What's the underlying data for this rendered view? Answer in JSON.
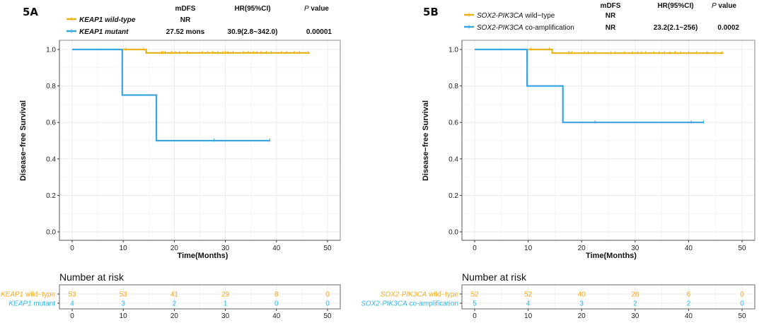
{
  "colors": {
    "wild": "#E8B41A",
    "mutant": "#3AA6E0",
    "risk_wild": "#F4A81E",
    "risk_mut": "#2FB6EE"
  },
  "chart_data": [
    {
      "type": "line",
      "panel": "5A",
      "title": "",
      "xlabel": "Time(Months)",
      "ylabel": "Disease−free Survival",
      "xlim": [
        0,
        50
      ],
      "ylim": [
        0,
        1
      ],
      "xticks": [
        0,
        10,
        20,
        30,
        40,
        50
      ],
      "yticks": [
        "0.0",
        "0.2",
        "0.4",
        "0.6",
        "0.8",
        "1.0"
      ],
      "grid": true,
      "legend_table": {
        "headers": [
          "mDFS",
          "HR(95%CI)",
          "P value"
        ],
        "rows": [
          {
            "gene": "KEAP1",
            "label": " wild-type",
            "mdfs": "NR",
            "hr": "",
            "p": ""
          },
          {
            "gene": "KEAP1",
            "label": " mutant",
            "mdfs": "27.52 mons",
            "hr": "30.9(2.8~342.0)",
            "p": "0.00001"
          }
        ]
      },
      "series": [
        {
          "name": "KEAP1 wild-type",
          "color_key": "wild",
          "steps": [
            [
              0,
              1.0
            ],
            [
              14.5,
              1.0
            ],
            [
              14.5,
              0.981
            ],
            [
              46.5,
              0.981
            ]
          ],
          "start": 10,
          "censors": [
            [
              10.5,
              1.0
            ],
            [
              14.0,
              1.0
            ],
            [
              17.5,
              0.981
            ],
            [
              17.8,
              0.981
            ],
            [
              18.2,
              0.981
            ],
            [
              19.5,
              0.981
            ],
            [
              20.2,
              0.981
            ],
            [
              21,
              0.981
            ],
            [
              22.5,
              0.981
            ],
            [
              25.5,
              0.981
            ],
            [
              26.5,
              0.981
            ],
            [
              27.5,
              0.981
            ],
            [
              28.5,
              0.981
            ],
            [
              29.5,
              0.981
            ],
            [
              30,
              0.981
            ],
            [
              30.5,
              0.981
            ],
            [
              31.5,
              0.981
            ],
            [
              33.5,
              0.981
            ],
            [
              34.5,
              0.981
            ],
            [
              35.5,
              0.981
            ],
            [
              36.2,
              0.981
            ],
            [
              37,
              0.981
            ],
            [
              38,
              0.981
            ],
            [
              39,
              0.981
            ],
            [
              41,
              0.981
            ],
            [
              42,
              0.981
            ],
            [
              43.5,
              0.981
            ],
            [
              44.5,
              0.981
            ],
            [
              46.2,
              0.981
            ]
          ]
        },
        {
          "name": "KEAP1 mutant",
          "color_key": "mutant",
          "steps": [
            [
              0,
              1.0
            ],
            [
              9.8,
              1.0
            ],
            [
              9.8,
              0.75
            ],
            [
              16.5,
              0.75
            ],
            [
              16.5,
              0.5
            ],
            [
              38.7,
              0.5
            ]
          ],
          "start": 0,
          "censors": [
            [
              27.8,
              0.5
            ],
            [
              38.7,
              0.5
            ]
          ]
        }
      ],
      "risk_table": {
        "title": "Number at risk",
        "rows": [
          {
            "gene": "KEAP1",
            "label": " wild−type",
            "color_key": "risk_wild",
            "values": [
              53,
              53,
              41,
              29,
              8,
              0
            ]
          },
          {
            "gene": "KEAP1",
            "label": " mutant",
            "color_key": "risk_mut",
            "values": [
              4,
              3,
              2,
              1,
              0,
              0
            ]
          }
        ]
      }
    },
    {
      "type": "line",
      "panel": "5B",
      "title": "",
      "xlabel": "Time(Months)",
      "ylabel": "Disease−free Survival",
      "xlim": [
        0,
        50
      ],
      "ylim": [
        0,
        1
      ],
      "xticks": [
        0,
        10,
        20,
        30,
        40,
        50
      ],
      "yticks": [
        "0.0",
        "0.2",
        "0.4",
        "0.6",
        "0.8",
        "1.0"
      ],
      "grid": true,
      "legend_table": {
        "headers": [
          "mDFS",
          "HR(95%CI)",
          "P value"
        ],
        "rows": [
          {
            "gene": "SOX2-PIK3CA",
            "label": " wild−type",
            "mdfs": "NR",
            "hr": "",
            "p": ""
          },
          {
            "gene": "SOX2-PIK3CA",
            "label": " co-amplification",
            "mdfs": "NR",
            "hr": "23.2(2.1~256)",
            "p": "0.0002"
          }
        ]
      },
      "series": [
        {
          "name": "SOX2-PIK3CA wild-type",
          "color_key": "wild",
          "steps": [
            [
              0,
              1.0
            ],
            [
              14.5,
              1.0
            ],
            [
              14.5,
              0.98
            ],
            [
              46.5,
              0.98
            ]
          ],
          "start": 10,
          "censors": [
            [
              10.5,
              1.0
            ],
            [
              14.0,
              1.0
            ],
            [
              17.5,
              0.98
            ],
            [
              17.8,
              0.98
            ],
            [
              18.2,
              0.98
            ],
            [
              20.5,
              0.98
            ],
            [
              21.2,
              0.98
            ],
            [
              22.5,
              0.98
            ],
            [
              25.5,
              0.98
            ],
            [
              26.3,
              0.98
            ],
            [
              28,
              0.98
            ],
            [
              29.5,
              0.98
            ],
            [
              30.5,
              0.98
            ],
            [
              31.2,
              0.98
            ],
            [
              32,
              0.98
            ],
            [
              33.5,
              0.98
            ],
            [
              34.5,
              0.98
            ],
            [
              35.5,
              0.98
            ],
            [
              36.5,
              0.98
            ],
            [
              37.5,
              0.98
            ],
            [
              38.5,
              0.98
            ],
            [
              40,
              0.98
            ],
            [
              41.5,
              0.98
            ],
            [
              43.5,
              0.98
            ],
            [
              45,
              0.98
            ],
            [
              46.2,
              0.98
            ]
          ]
        },
        {
          "name": "SOX2-PIK3CA co-amplification",
          "color_key": "mutant",
          "steps": [
            [
              0,
              1.0
            ],
            [
              9.8,
              1.0
            ],
            [
              9.8,
              0.8
            ],
            [
              16.5,
              0.8
            ],
            [
              16.5,
              0.6
            ],
            [
              42.8,
              0.6
            ]
          ],
          "start": 0,
          "censors": [
            [
              22.5,
              0.6
            ],
            [
              40.5,
              0.6
            ],
            [
              42.8,
              0.6
            ]
          ]
        }
      ],
      "risk_table": {
        "title": "Number at risk",
        "rows": [
          {
            "gene": "SOX2·PIK3CA",
            "label": " wild−type",
            "color_key": "risk_wild",
            "values": [
              52,
              52,
              40,
              28,
              6,
              0
            ]
          },
          {
            "gene": "SOX2·PIK3CA",
            "label": " co-amplification",
            "color_key": "risk_mut",
            "values": [
              5,
              4,
              3,
              2,
              2,
              0
            ]
          }
        ]
      }
    }
  ]
}
